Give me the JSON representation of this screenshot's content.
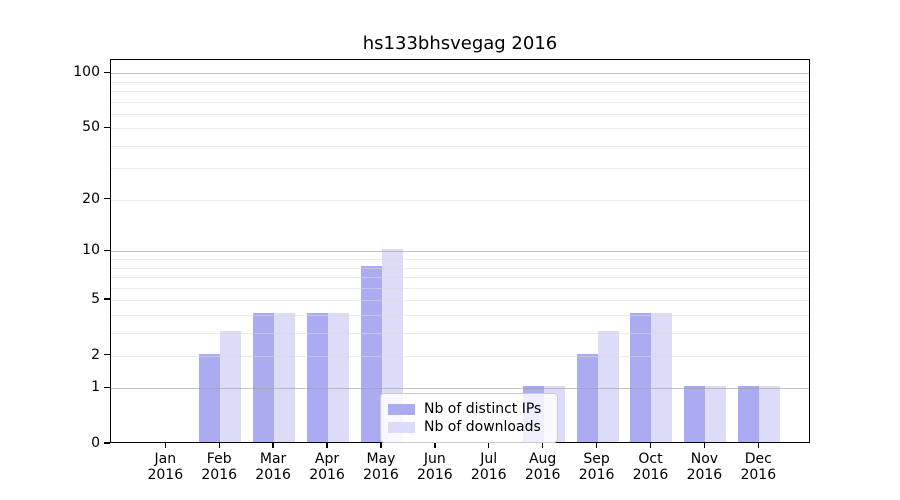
{
  "chart_data": {
    "type": "bar",
    "title": "hs133bhsvegag 2016",
    "xlabel": "",
    "ylabel": "",
    "y_scale": "log1p",
    "ylim": [
      0,
      119
    ],
    "legend_position": "lower-center-inside",
    "grid": {
      "major_values": [
        1,
        10,
        100
      ],
      "minor_values": [
        2,
        3,
        4,
        5,
        6,
        7,
        8,
        9,
        20,
        30,
        40,
        50,
        60,
        70,
        80,
        90
      ]
    },
    "y_ticks": [
      {
        "label": "100",
        "value": 100
      },
      {
        "label": "50",
        "value": 50
      },
      {
        "label": "20",
        "value": 20
      },
      {
        "label": "10",
        "value": 10
      },
      {
        "label": "5",
        "value": 5
      },
      {
        "label": "2",
        "value": 2
      },
      {
        "label": "1",
        "value": 1
      },
      {
        "label": "0",
        "value": 0
      }
    ],
    "categories": [
      {
        "month": "Jan",
        "year": "2016"
      },
      {
        "month": "Feb",
        "year": "2016"
      },
      {
        "month": "Mar",
        "year": "2016"
      },
      {
        "month": "Apr",
        "year": "2016"
      },
      {
        "month": "May",
        "year": "2016"
      },
      {
        "month": "Jun",
        "year": "2016"
      },
      {
        "month": "Jul",
        "year": "2016"
      },
      {
        "month": "Aug",
        "year": "2016"
      },
      {
        "month": "Sep",
        "year": "2016"
      },
      {
        "month": "Oct",
        "year": "2016"
      },
      {
        "month": "Nov",
        "year": "2016"
      },
      {
        "month": "Dec",
        "year": "2016"
      }
    ],
    "series": [
      {
        "name": "Nb of distinct IPs",
        "color": "#ababf2",
        "values": [
          0,
          2,
          4,
          4,
          8,
          0,
          0,
          1,
          2,
          4,
          1,
          1
        ]
      },
      {
        "name": "Nb of downloads",
        "color": "#dcdcf8",
        "values": [
          0,
          3,
          4,
          4,
          10,
          0,
          0,
          1,
          3,
          4,
          1,
          1
        ]
      }
    ]
  },
  "colors": {
    "axis": "#000000",
    "grid_major": "#c6c6c6",
    "grid_minor": "#ececec",
    "background": "#ffffff"
  }
}
